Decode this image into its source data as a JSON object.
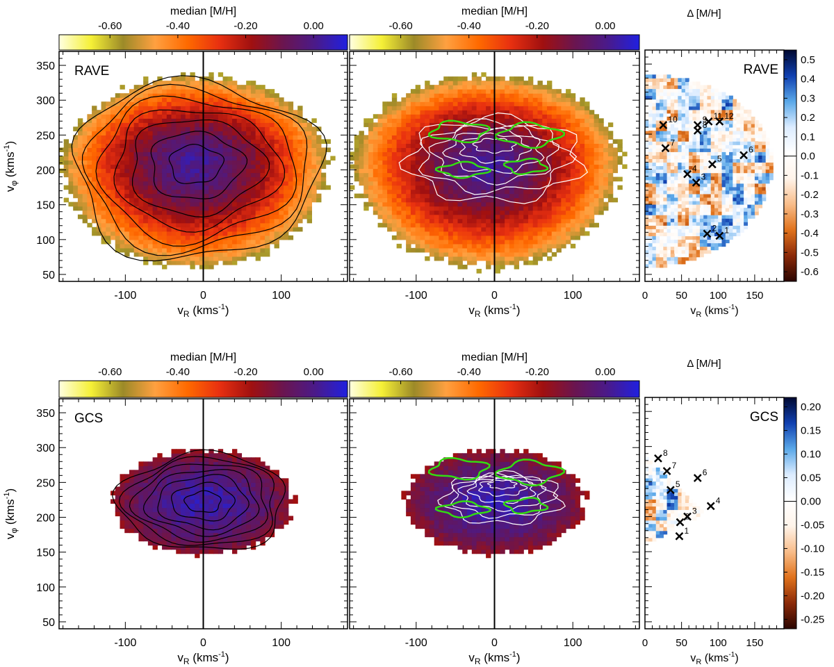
{
  "colors": {
    "median_scale": [
      "#ffffe0",
      "#f5f036",
      "#9c8a28",
      "#ffa040",
      "#ff6a00",
      "#e83010",
      "#a01010",
      "#6a1550",
      "#4a1a8a",
      "#2020e0"
    ],
    "delta_scale": [
      "#2a0500",
      "#8b2a08",
      "#e0721c",
      "#f8bd8a",
      "#fff4ea",
      "#ffffff",
      "#dcecff",
      "#5aa8e8",
      "#1040b0",
      "#000830"
    ],
    "contour_black": "#000000",
    "contour_white": "#ffffff",
    "contour_green": "#33dd11"
  },
  "labels": {
    "median_colorbar_title": "median [M/H]",
    "delta_colorbar_title": "Δ [M/H]",
    "xlabel": "v",
    "xlabel_sub": "R",
    "xlabel_unit": " (kms",
    "ylabel": "v",
    "ylabel_sub": "φ",
    "ylabel_unit": " (kms",
    "unit_exp": "-1",
    "unit_close": ")"
  },
  "chart_data": [
    {
      "type": "heatmap",
      "panel": "RAVE median metallicity with black contours",
      "survey_label": "RAVE",
      "colorbar_title": "median [M/H]",
      "colorbar_ticks": [
        "-0.60",
        "-0.40",
        "-0.20",
        "0.00"
      ],
      "colorbar_range": [
        -0.75,
        0.1
      ],
      "xlabel": "vR (kms-1)",
      "ylabel": "vφ (kms-1)",
      "xlim": [
        -185,
        185
      ],
      "ylim": [
        40,
        370
      ],
      "xticks": [
        "-100",
        "0",
        "100"
      ],
      "yticks": [
        "50",
        "100",
        "150",
        "200",
        "250",
        "300",
        "350"
      ],
      "vertical_line_at": 0,
      "distribution": {
        "center_vR": -10,
        "center_vphi": 210,
        "extent_vR": 170,
        "extent_vphi_up": 125,
        "extent_vphi_down": 150,
        "peak_value": 0.02,
        "edge_value": -0.55
      },
      "contours": "black"
    },
    {
      "type": "heatmap",
      "panel": "RAVE median metallicity with density (white) and overdensity (green) contours",
      "colorbar_title": "median [M/H]",
      "colorbar_ticks": [
        "-0.60",
        "-0.40",
        "-0.20",
        "0.00"
      ],
      "colorbar_range": [
        -0.75,
        0.1
      ],
      "xlabel": "vR (kms-1)",
      "xlim": [
        -185,
        185
      ],
      "ylim": [
        40,
        370
      ],
      "xticks": [
        "-100",
        "0",
        "100"
      ],
      "vertical_line_at": 0,
      "distribution": {
        "center_vR": -10,
        "center_vphi": 210,
        "extent_vR": 170,
        "extent_vphi_up": 125,
        "extent_vphi_down": 150,
        "peak_value": 0.02,
        "edge_value": -0.55
      },
      "contours": "white-and-green"
    },
    {
      "type": "heatmap",
      "panel": "RAVE delta metallicity for positive vR",
      "survey_label": "RAVE",
      "colorbar_title": "Δ [M/H]",
      "colorbar_ticks": [
        "0.5",
        "0.4",
        "0.3",
        "0.2",
        "0.1",
        "0.0",
        "-0.1",
        "-0.2",
        "-0.3",
        "-0.4",
        "-0.5",
        "-0.6"
      ],
      "colorbar_range": [
        -0.65,
        0.55
      ],
      "xlabel": "vR (kms-1)",
      "xlim": [
        0,
        190
      ],
      "ylim": [
        40,
        370
      ],
      "xticks": [
        "0",
        "50",
        "100",
        "150"
      ],
      "markers": [
        {
          "label": "1",
          "vR": 102,
          "vphi": 105
        },
        {
          "label": "2",
          "vR": 85,
          "vphi": 108
        },
        {
          "label": "3",
          "vR": 70,
          "vphi": 181
        },
        {
          "label": "4",
          "vR": 58,
          "vphi": 193
        },
        {
          "label": "5",
          "vR": 92,
          "vphi": 207
        },
        {
          "label": "6",
          "vR": 135,
          "vphi": 220
        },
        {
          "label": "7",
          "vR": 28,
          "vphi": 230
        },
        {
          "label": "8",
          "vR": 72,
          "vphi": 255
        },
        {
          "label": "9",
          "vR": 72,
          "vphi": 263
        },
        {
          "label": "10",
          "vR": 25,
          "vphi": 263
        },
        {
          "label": "11",
          "vR": 87,
          "vphi": 268
        },
        {
          "label": "12",
          "vR": 102,
          "vphi": 268
        }
      ]
    },
    {
      "type": "heatmap",
      "panel": "GCS median metallicity with black contours",
      "survey_label": "GCS",
      "colorbar_title": "median [M/H]",
      "colorbar_ticks": [
        "-0.60",
        "-0.40",
        "-0.20",
        "0.00"
      ],
      "colorbar_range": [
        -0.75,
        0.1
      ],
      "xlabel": "vR (kms-1)",
      "ylabel": "vφ (kms-1)",
      "xlim": [
        -185,
        185
      ],
      "ylim": [
        40,
        370
      ],
      "xticks": [
        "-100",
        "0",
        "100"
      ],
      "yticks": [
        "50",
        "100",
        "150",
        "200",
        "250",
        "300",
        "350"
      ],
      "vertical_line_at": 0,
      "distribution": {
        "center_vR": 0,
        "center_vphi": 222,
        "extent_vR": 115,
        "extent_vphi_up": 75,
        "extent_vphi_down": 75,
        "peak_value": 0.05,
        "edge_value": -0.15
      },
      "contours": "black"
    },
    {
      "type": "heatmap",
      "panel": "GCS median metallicity with density (white) and overdensity (green) contours",
      "colorbar_title": "median [M/H]",
      "colorbar_ticks": [
        "-0.60",
        "-0.40",
        "-0.20",
        "0.00"
      ],
      "colorbar_range": [
        -0.75,
        0.1
      ],
      "xlabel": "vR (kms-1)",
      "xlim": [
        -185,
        185
      ],
      "ylim": [
        40,
        370
      ],
      "xticks": [
        "-100",
        "0",
        "100"
      ],
      "vertical_line_at": 0,
      "distribution": {
        "center_vR": 0,
        "center_vphi": 222,
        "extent_vR": 115,
        "extent_vphi_up": 75,
        "extent_vphi_down": 75,
        "peak_value": 0.05,
        "edge_value": -0.15
      },
      "contours": "white-and-green"
    },
    {
      "type": "heatmap",
      "panel": "GCS delta metallicity for positive vR",
      "survey_label": "GCS",
      "colorbar_title": "Δ [M/H]",
      "colorbar_ticks": [
        "0.20",
        "0.15",
        "0.10",
        "0.05",
        "0.00",
        "-0.05",
        "-0.10",
        "-0.15",
        "-0.20",
        "-0.25"
      ],
      "colorbar_range": [
        -0.27,
        0.22
      ],
      "xlabel": "vR (kms-1)",
      "xlim": [
        0,
        190
      ],
      "ylim": [
        40,
        370
      ],
      "xticks": [
        "0",
        "50",
        "100",
        "150"
      ],
      "markers": [
        {
          "label": "1",
          "vR": 47,
          "vphi": 172
        },
        {
          "label": "2",
          "vR": 48,
          "vphi": 192
        },
        {
          "label": "3",
          "vR": 58,
          "vphi": 200
        },
        {
          "label": "4",
          "vR": 90,
          "vphi": 215
        },
        {
          "label": "5",
          "vR": 35,
          "vphi": 238
        },
        {
          "label": "6",
          "vR": 72,
          "vphi": 255
        },
        {
          "label": "7",
          "vR": 30,
          "vphi": 265
        },
        {
          "label": "8",
          "vR": 18,
          "vphi": 283
        }
      ]
    }
  ]
}
